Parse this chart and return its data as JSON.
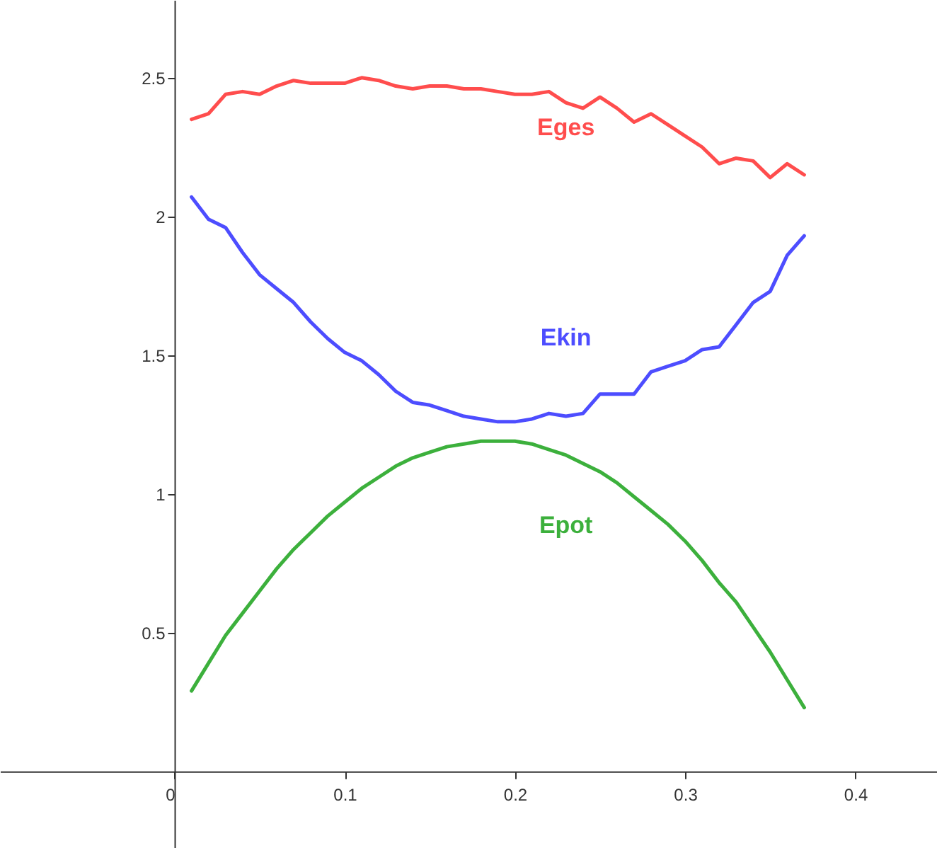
{
  "chart_data": {
    "type": "line",
    "x": [
      0.01,
      0.02,
      0.03,
      0.04,
      0.05,
      0.06,
      0.07,
      0.08,
      0.09,
      0.1,
      0.11,
      0.12,
      0.13,
      0.14,
      0.15,
      0.16,
      0.17,
      0.18,
      0.19,
      0.2,
      0.21,
      0.22,
      0.23,
      0.24,
      0.25,
      0.26,
      0.27,
      0.28,
      0.29,
      0.3,
      0.31,
      0.32,
      0.33,
      0.34,
      0.35,
      0.36,
      0.37
    ],
    "series": [
      {
        "name": "Eges",
        "color": "#ff4d4d",
        "values": [
          2.35,
          2.37,
          2.44,
          2.45,
          2.44,
          2.47,
          2.49,
          2.48,
          2.48,
          2.48,
          2.5,
          2.49,
          2.47,
          2.46,
          2.47,
          2.47,
          2.46,
          2.46,
          2.45,
          2.44,
          2.44,
          2.45,
          2.41,
          2.39,
          2.43,
          2.39,
          2.34,
          2.37,
          2.33,
          2.29,
          2.25,
          2.19,
          2.21,
          2.2,
          2.14,
          2.19,
          2.15
        ]
      },
      {
        "name": "Ekin",
        "color": "#4d4dff",
        "values": [
          2.07,
          1.99,
          1.96,
          1.87,
          1.79,
          1.74,
          1.69,
          1.62,
          1.56,
          1.51,
          1.48,
          1.43,
          1.37,
          1.33,
          1.32,
          1.3,
          1.28,
          1.27,
          1.26,
          1.26,
          1.27,
          1.29,
          1.28,
          1.29,
          1.36,
          1.36,
          1.36,
          1.44,
          1.46,
          1.48,
          1.52,
          1.53,
          1.61,
          1.69,
          1.73,
          1.86,
          1.93
        ]
      },
      {
        "name": "Epot",
        "color": "#3cb03c",
        "values": [
          0.29,
          0.39,
          0.49,
          0.57,
          0.65,
          0.73,
          0.8,
          0.86,
          0.92,
          0.97,
          1.02,
          1.06,
          1.1,
          1.13,
          1.15,
          1.17,
          1.18,
          1.19,
          1.19,
          1.19,
          1.18,
          1.16,
          1.14,
          1.11,
          1.08,
          1.04,
          0.99,
          0.94,
          0.89,
          0.83,
          0.76,
          0.68,
          0.61,
          0.52,
          0.43,
          0.33,
          0.23
        ]
      }
    ],
    "xlim": [
      -0.1025,
      0.448
    ],
    "ylim": [
      -0.276,
      2.78
    ],
    "xticks": [
      0,
      0.1,
      0.2,
      0.3,
      0.4
    ],
    "yticks": [
      0.5,
      1,
      1.5,
      2,
      2.5
    ],
    "grid": false,
    "marker": "none",
    "line_style": "solid"
  }
}
